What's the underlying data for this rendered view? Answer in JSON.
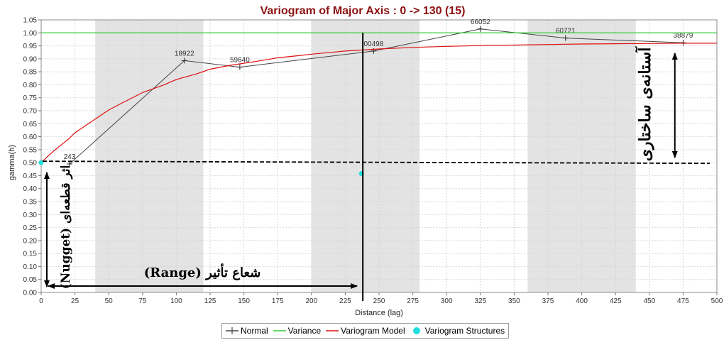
{
  "chart_data": {
    "type": "line",
    "title": "Variogram of Major Axis : 0 -> 130 (15)",
    "xlabel": "Distance (lag)",
    "ylabel": "gamma(h)",
    "xlim": [
      0,
      500
    ],
    "ylim": [
      0,
      1.05
    ],
    "x_ticks": [
      0,
      25,
      50,
      75,
      100,
      125,
      150,
      175,
      200,
      225,
      250,
      275,
      300,
      325,
      350,
      375,
      400,
      425,
      450,
      475,
      500
    ],
    "y_ticks": [
      0.0,
      0.05,
      0.1,
      0.15,
      0.2,
      0.25,
      0.3,
      0.35,
      0.4,
      0.45,
      0.5,
      0.55,
      0.6,
      0.65,
      0.7,
      0.75,
      0.8,
      0.85,
      0.9,
      0.95,
      1.0,
      1.05
    ],
    "grid": true,
    "shaded_bands": [
      [
        40,
        120
      ],
      [
        200,
        280
      ],
      [
        360,
        440
      ]
    ],
    "legend_position": "bottom",
    "series": [
      {
        "name": "Normal",
        "kind": "line-markers",
        "color": "#444444",
        "points": [
          {
            "x": 21,
            "y": 0.495,
            "label": "243"
          },
          {
            "x": 106,
            "y": 0.893,
            "label": "18922"
          },
          {
            "x": 147,
            "y": 0.868,
            "label": "59640"
          },
          {
            "x": 246,
            "y": 0.93,
            "label": "00498"
          },
          {
            "x": 325,
            "y": 1.015,
            "label": "66052"
          },
          {
            "x": 388,
            "y": 0.98,
            "label": "60721"
          },
          {
            "x": 475,
            "y": 0.962,
            "label": "38879"
          }
        ]
      },
      {
        "name": "Variance",
        "kind": "hline",
        "color": "#33cc33",
        "y": 1.0
      },
      {
        "name": "Variogram Model",
        "kind": "line",
        "color": "#dd1111",
        "points": [
          {
            "x": 0,
            "y": 0.5
          },
          {
            "x": 5,
            "y": 0.525
          },
          {
            "x": 10,
            "y": 0.548
          },
          {
            "x": 20,
            "y": 0.59
          },
          {
            "x": 25,
            "y": 0.615
          },
          {
            "x": 40,
            "y": 0.668
          },
          {
            "x": 50,
            "y": 0.703
          },
          {
            "x": 60,
            "y": 0.73
          },
          {
            "x": 75,
            "y": 0.77
          },
          {
            "x": 90,
            "y": 0.798
          },
          {
            "x": 100,
            "y": 0.82
          },
          {
            "x": 115,
            "y": 0.842
          },
          {
            "x": 125,
            "y": 0.86
          },
          {
            "x": 140,
            "y": 0.875
          },
          {
            "x": 150,
            "y": 0.883
          },
          {
            "x": 165,
            "y": 0.895
          },
          {
            "x": 175,
            "y": 0.904
          },
          {
            "x": 190,
            "y": 0.912
          },
          {
            "x": 200,
            "y": 0.918
          },
          {
            "x": 215,
            "y": 0.925
          },
          {
            "x": 225,
            "y": 0.93
          },
          {
            "x": 240,
            "y": 0.935
          },
          {
            "x": 250,
            "y": 0.938
          },
          {
            "x": 275,
            "y": 0.944
          },
          {
            "x": 300,
            "y": 0.948
          },
          {
            "x": 325,
            "y": 0.951
          },
          {
            "x": 350,
            "y": 0.953
          },
          {
            "x": 375,
            "y": 0.955
          },
          {
            "x": 400,
            "y": 0.957
          },
          {
            "x": 425,
            "y": 0.958
          },
          {
            "x": 450,
            "y": 0.959
          },
          {
            "x": 475,
            "y": 0.96
          },
          {
            "x": 500,
            "y": 0.96
          }
        ]
      },
      {
        "name": "Variogram Structures",
        "kind": "points",
        "color": "#22dddd",
        "points": [
          {
            "x": 0,
            "y": 0.5
          },
          {
            "x": 237,
            "y": 0.458
          }
        ]
      }
    ],
    "annotations": {
      "dashed_line_y": 0.5,
      "range_line_x": 238,
      "range_label": "شعاع تأثیر (Range)",
      "nugget_label": "اثر قطعه‌ای (Nugget)",
      "sill_label": "آستانه‌ی ساختاری",
      "sill_arrow_x": 461
    }
  }
}
